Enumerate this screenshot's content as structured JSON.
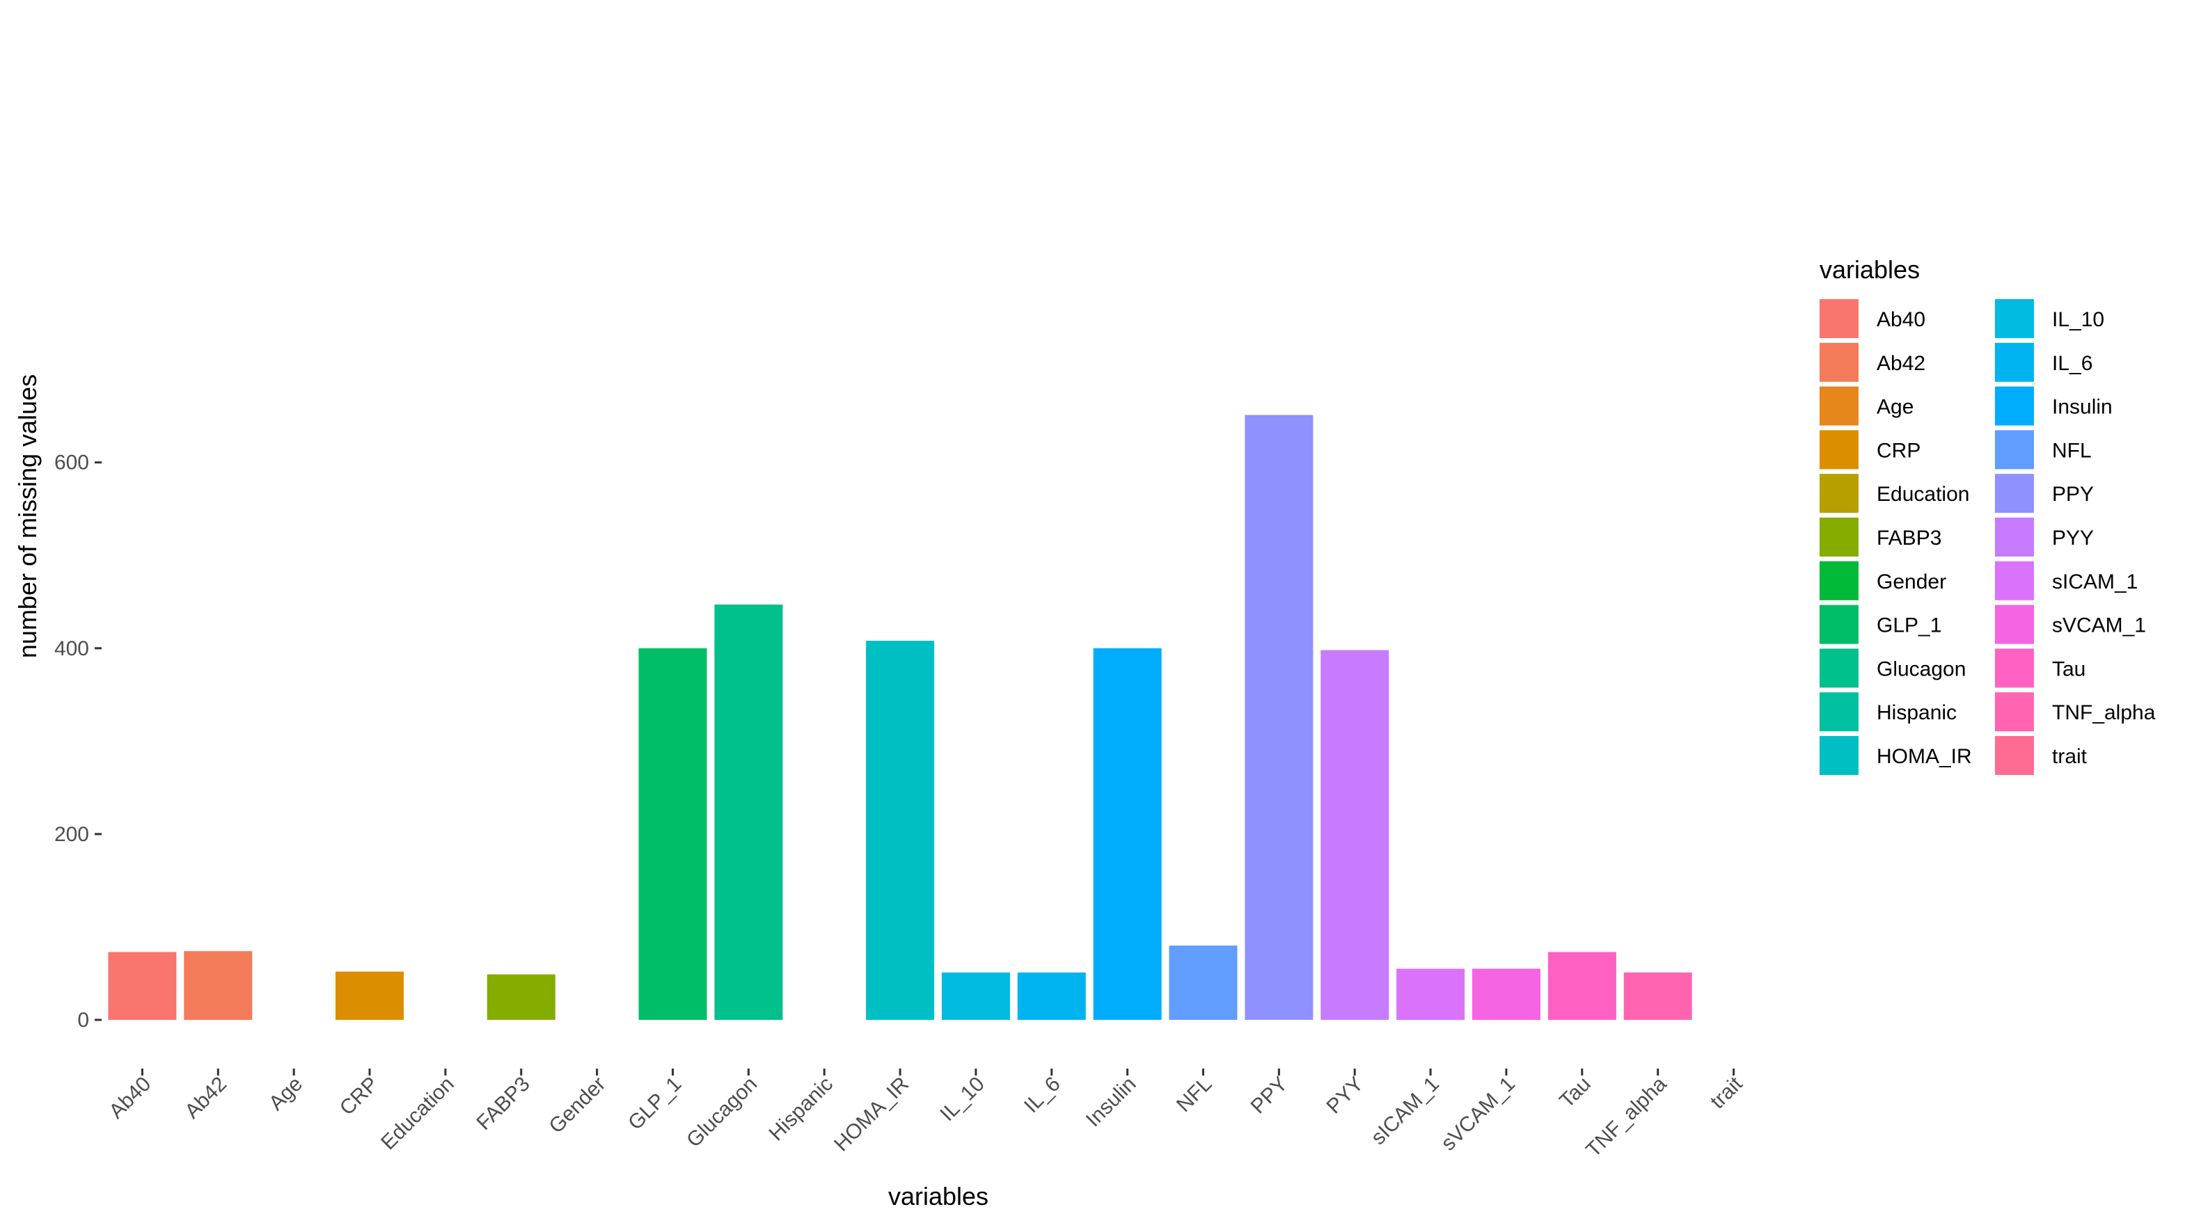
{
  "chart_data": {
    "type": "bar",
    "title": "",
    "xlabel": "variables",
    "ylabel": "number of missing values",
    "ylim": [
      -60,
      651
    ],
    "yticks": [
      0,
      200,
      400,
      600
    ],
    "grid": false,
    "legend_position": "right",
    "legend_title": "variables",
    "categories": [
      "Ab40",
      "Ab42",
      "Age",
      "CRP",
      "Education",
      "FABP3",
      "Gender",
      "GLP_1",
      "Glucagon",
      "Hispanic",
      "HOMA_IR",
      "IL_10",
      "IL_6",
      "Insulin",
      "NFL",
      "PPY",
      "PYY",
      "sICAM_1",
      "sVCAM_1",
      "Tau",
      "TNF_alpha",
      "trait"
    ],
    "values": [
      73,
      74,
      0,
      52,
      0,
      49,
      0,
      400,
      447,
      0,
      408,
      51,
      51,
      400,
      80,
      651,
      398,
      55,
      55,
      73,
      51,
      0
    ],
    "colors": [
      "#F8766D",
      "#F37B59",
      "#E7861B",
      "#DB8E00",
      "#B79F00",
      "#85AD00",
      "#00BA38",
      "#00BE67",
      "#00C08B",
      "#00C19F",
      "#00BFC4",
      "#00BAE0",
      "#00B4EF",
      "#00ACFC",
      "#619CFF",
      "#8F91FF",
      "#C77CFF",
      "#DB72FB",
      "#F564E3",
      "#FF61C3",
      "#FF64B0",
      "#FF6C91"
    ]
  }
}
